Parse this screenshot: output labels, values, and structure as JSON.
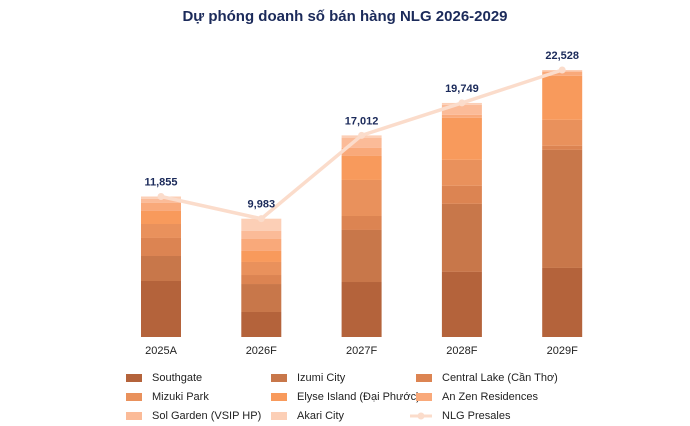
{
  "chart_data": {
    "type": "bar",
    "stacked": true,
    "title": "Dự phóng doanh số bán hàng NLG 2026-2029",
    "categories": [
      "2025A",
      "2026F",
      "2027F",
      "2028F",
      "2029F"
    ],
    "series": [
      {
        "name": "Southgate",
        "color": "#b4633b",
        "values": [
          4725,
          2110,
          4640,
          5490,
          5825
        ]
      },
      {
        "name": "Izumi City",
        "color": "#c8774a",
        "values": [
          2110,
          2360,
          4390,
          5740,
          9960
        ]
      },
      {
        "name": "Central Lake (Cần Thơ)",
        "color": "#dc8452",
        "values": [
          1520,
          760,
          1180,
          1520,
          340
        ]
      },
      {
        "name": "Mizuki Park",
        "color": "#e9915c",
        "values": [
          1180,
          1100,
          3040,
          2195,
          2195
        ]
      },
      {
        "name": "Elyse Island (Đại Phước)",
        "color": "#f89a5c",
        "values": [
          1100,
          930,
          2025,
          3545,
          3715
        ]
      },
      {
        "name": "An Zen Residences",
        "color": "#f9a97a",
        "values": [
          675,
          1010,
          675,
          250,
          340
        ]
      },
      {
        "name": "Sol Garden (VSIP HP)",
        "color": "#fbbb98",
        "values": [
          340,
          700,
          870,
          845,
          100
        ]
      },
      {
        "name": "Akari City",
        "color": "#fccfb6",
        "values": [
          205,
          1013,
          192,
          164,
          53
        ]
      },
      {
        "name": "NLG Presales",
        "type": "line",
        "color": "#fbdccb",
        "values": [
          11855,
          9983,
          17012,
          19749,
          22528
        ],
        "value_labels": [
          "11,855",
          "9,983",
          "17,012",
          "19,749",
          "22,528"
        ]
      }
    ]
  }
}
